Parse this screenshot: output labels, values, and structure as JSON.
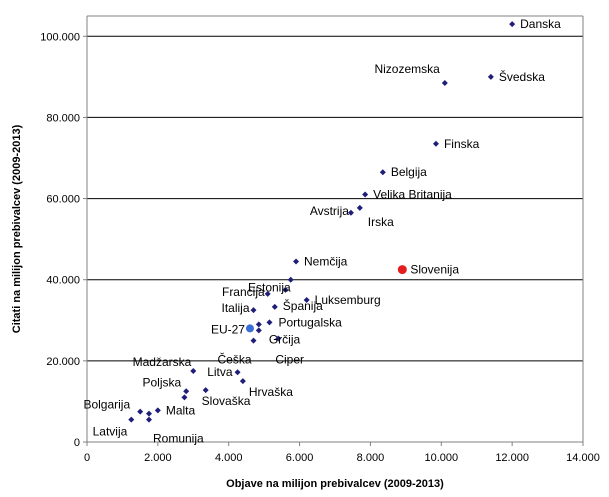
{
  "chart_data": {
    "type": "scatter",
    "title": "",
    "xlabel": "Objave na milijon prebivalcev (2009-2013)",
    "ylabel": "Citati na milijon prebivalcev (2009-2013)",
    "xlim": [
      0,
      14000
    ],
    "ylim": [
      0,
      105000
    ],
    "x_ticks": [
      0,
      2000,
      4000,
      6000,
      8000,
      10000,
      12000,
      14000
    ],
    "x_tick_labels": [
      "0",
      "2.000",
      "4.000",
      "6.000",
      "8.000",
      "10.000",
      "12.000",
      "14.000"
    ],
    "y_ticks": [
      0,
      20000,
      40000,
      60000,
      80000,
      100000
    ],
    "y_tick_labels": [
      "0",
      "20.000",
      "40.000",
      "60.000",
      "80.000",
      "100.000"
    ],
    "grid": "horizontal",
    "legend": "none",
    "colors": {
      "default_point": "#1f1f7a",
      "highlight": "#e31e1e",
      "eu": "#3a6fd8",
      "gridline": "#000000",
      "axis": "#808080"
    },
    "points": [
      {
        "label": "Danska",
        "x": 12000,
        "y": 103000,
        "style": "default",
        "anchor": "right"
      },
      {
        "label": "Nizozemska",
        "x": 10100,
        "y": 88500,
        "style": "default",
        "anchor": "above-left"
      },
      {
        "label": "Švedska",
        "x": 11400,
        "y": 90000,
        "style": "default",
        "anchor": "right"
      },
      {
        "label": "Finska",
        "x": 9850,
        "y": 73500,
        "style": "default",
        "anchor": "right"
      },
      {
        "label": "Belgija",
        "x": 8350,
        "y": 66500,
        "style": "default",
        "anchor": "right"
      },
      {
        "label": "Velika Britanija",
        "x": 7850,
        "y": 61000,
        "style": "default",
        "anchor": "right"
      },
      {
        "label": "Avstrija",
        "x": 7450,
        "y": 56500,
        "style": "default",
        "anchor": "left"
      },
      {
        "label": "Irska",
        "x": 7700,
        "y": 57700,
        "style": "default",
        "anchor": "below-right"
      },
      {
        "label": "Slovenija",
        "x": 8900,
        "y": 42500,
        "style": "highlight",
        "anchor": "right"
      },
      {
        "label": "Nemčija",
        "x": 5900,
        "y": 44500,
        "style": "default",
        "anchor": "right"
      },
      {
        "label": "Estonija",
        "x": 5750,
        "y": 40000,
        "style": "default",
        "anchor": "left-label"
      },
      {
        "label": "Francija",
        "x": 5100,
        "y": 36500,
        "style": "default",
        "anchor": "left"
      },
      {
        "label": "Luksemburg",
        "x": 6200,
        "y": 35000,
        "style": "default",
        "anchor": "right"
      },
      {
        "label": "",
        "x": 5600,
        "y": 37500,
        "style": "default",
        "anchor": "none"
      },
      {
        "label": "Italija",
        "x": 4700,
        "y": 32500,
        "style": "default",
        "anchor": "left"
      },
      {
        "label": "Španija",
        "x": 5300,
        "y": 33300,
        "style": "default",
        "anchor": "right"
      },
      {
        "label": "Portugalska",
        "x": 5150,
        "y": 29500,
        "style": "default",
        "anchor": "right"
      },
      {
        "label": "EU-27",
        "x": 4600,
        "y": 28000,
        "style": "eu",
        "anchor": "left"
      },
      {
        "label": "",
        "x": 4850,
        "y": 29000,
        "style": "default",
        "anchor": "none"
      },
      {
        "label": "Grčija",
        "x": 4850,
        "y": 27500,
        "style": "default",
        "anchor": "right-below"
      },
      {
        "label": "Češka",
        "x": 4700,
        "y": 25000,
        "style": "default",
        "anchor": "below-left"
      },
      {
        "label": "Ciper",
        "x": 5400,
        "y": 25500,
        "style": "default",
        "anchor": "below-right"
      },
      {
        "label": "Madžarska",
        "x": 3000,
        "y": 17500,
        "style": "default",
        "anchor": "above-left"
      },
      {
        "label": "Litva",
        "x": 4250,
        "y": 17200,
        "style": "default",
        "anchor": "left"
      },
      {
        "label": "Hrvaška",
        "x": 4400,
        "y": 15000,
        "style": "default",
        "anchor": "below-right"
      },
      {
        "label": "Poljska",
        "x": 2800,
        "y": 12500,
        "style": "default",
        "anchor": "above-left"
      },
      {
        "label": "Slovaška",
        "x": 3350,
        "y": 12800,
        "style": "default",
        "anchor": "below-left"
      },
      {
        "label": "",
        "x": 2750,
        "y": 11000,
        "style": "default",
        "anchor": "none"
      },
      {
        "label": "Bolgarija",
        "x": 1500,
        "y": 7500,
        "style": "default",
        "anchor": "above-left"
      },
      {
        "label": "Malta",
        "x": 2000,
        "y": 7800,
        "style": "default",
        "anchor": "right"
      },
      {
        "label": "",
        "x": 1750,
        "y": 7000,
        "style": "default",
        "anchor": "none"
      },
      {
        "label": "Latvija",
        "x": 1250,
        "y": 5500,
        "style": "default",
        "anchor": "below-left"
      },
      {
        "label": "Romunija",
        "x": 1750,
        "y": 5500,
        "style": "default",
        "anchor": "below-right"
      }
    ]
  }
}
